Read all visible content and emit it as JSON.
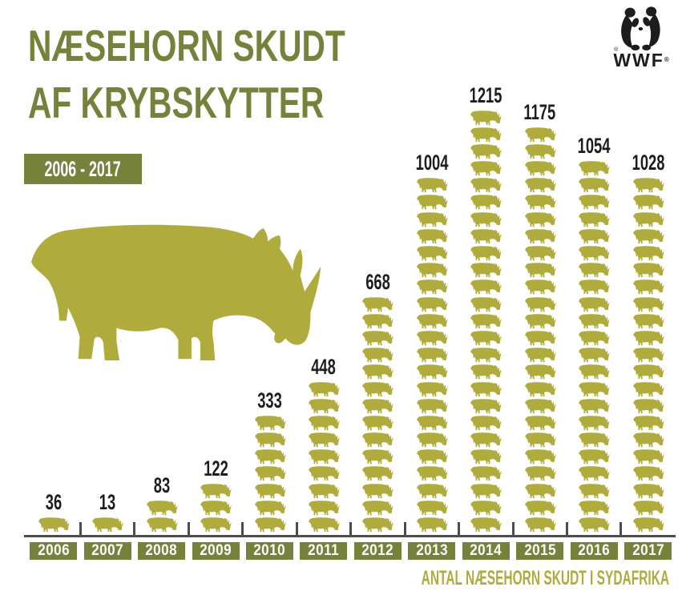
{
  "header": {
    "title_line1": "NÆSEHORN SKUDT",
    "title_line2": "AF KRYBSKYTTER",
    "period": "2006 - 2017"
  },
  "logo": {
    "brand": "WWF",
    "registered": "®"
  },
  "footer": {
    "caption": "ANTAL NÆSEHORN SKUDT I SYDAFRIKA"
  },
  "colors": {
    "olive": "#afab3c",
    "green": "#76813c",
    "label_black": "#1d1d1b",
    "axis_gray": "#4d4d4f",
    "background": "#ffffff"
  },
  "chart_data": {
    "type": "bar",
    "variant": "pictogram",
    "icon": "rhino",
    "title": "NÆSEHORN SKUDT AF KRYBSKYTTER",
    "period": "2006 - 2017",
    "categories": [
      "2006",
      "2007",
      "2008",
      "2009",
      "2010",
      "2011",
      "2012",
      "2013",
      "2014",
      "2015",
      "2016",
      "2017"
    ],
    "values": [
      36,
      13,
      83,
      122,
      333,
      448,
      668,
      1004,
      1215,
      1175,
      1054,
      1028
    ],
    "icons_per_category": [
      1,
      1,
      2,
      3,
      7,
      9,
      14,
      21,
      25,
      24,
      22,
      21
    ],
    "xlabel": "",
    "ylabel": "",
    "caption": "ANTAL NÆSEHORN SKUDT I SYDAFRIKA",
    "legend": "none",
    "grid": false,
    "ylim": [
      0,
      1250
    ]
  }
}
